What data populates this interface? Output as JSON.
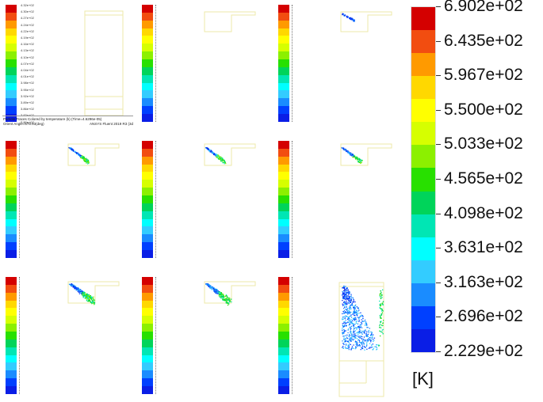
{
  "colorbar": {
    "colors": [
      "#d40000",
      "#f24d10",
      "#ff9a00",
      "#ffd800",
      "#ffff00",
      "#d6ff00",
      "#8cf000",
      "#28e000",
      "#00d45a",
      "#00e6b4",
      "#00ffff",
      "#33ccff",
      "#1a8cff",
      "#0040ff",
      "#0a1ee6"
    ],
    "labels": [
      "6.902e+02",
      "6.435e+02",
      "5.967e+02",
      "5.500e+02",
      "5.033e+02",
      "4.565e+02",
      "4.098e+02",
      "3.631e+02",
      "3.163e+02",
      "2.696e+02",
      "2.229e+02"
    ],
    "unit": "[K]"
  },
  "legend_small": {
    "labels": [
      "4.32e+02",
      "4.30e+02",
      "4.27e+02",
      "4.24e+02",
      "4.22e+02",
      "4.19e+02",
      "4.16e+02",
      "4.13e+02",
      "4.10e+02",
      "4.07e+02",
      "4.04e+02",
      "4.01e+02",
      "3.98e+02",
      "3.95e+02",
      "3.92e+02",
      "3.89e+02",
      "3.86e+02",
      "3.83e+02",
      "3.80e+02"
    ],
    "caption": "Particle Traces Colored by temperature (k)  (Time=4.6296e-05)",
    "view": "Orient Angle=578.93(deg)",
    "software": "ANSYS Fluent 2019 R3 (3d"
  },
  "panels": [
    {
      "id": 1,
      "spray": "none",
      "chamber": "full"
    },
    {
      "id": 2,
      "spray": "none"
    },
    {
      "id": 3,
      "spray": "tiny"
    },
    {
      "id": 4,
      "spray": "small"
    },
    {
      "id": 5,
      "spray": "small"
    },
    {
      "id": 6,
      "spray": "small"
    },
    {
      "id": 7,
      "spray": "medium"
    },
    {
      "id": 8,
      "spray": "medium"
    },
    {
      "id": 9,
      "spray": "full"
    }
  ]
}
